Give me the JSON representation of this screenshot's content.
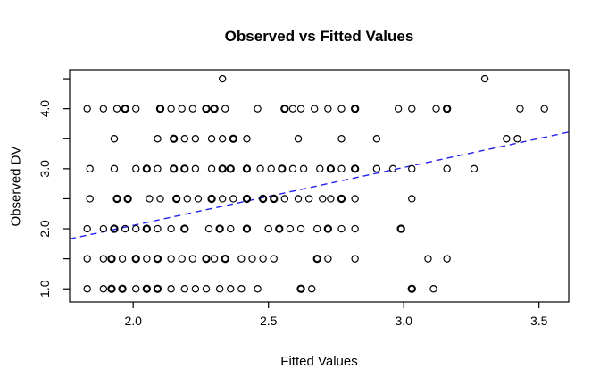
{
  "chart_data": {
    "type": "scatter",
    "title": "Observed vs Fitted Values",
    "xlabel": "Fitted Values",
    "ylabel": "Observed DV",
    "xlim": [
      1.765,
      3.61
    ],
    "ylim": [
      0.78,
      4.65
    ],
    "x_ticks": [
      2.0,
      2.5,
      3.0,
      3.5
    ],
    "x_tick_labels": [
      "2.0",
      "2.5",
      "3.0",
      "3.5"
    ],
    "y_ticks_minor": [
      1.0,
      1.5,
      2.0,
      2.5,
      3.0,
      3.5,
      4.0,
      4.5
    ],
    "y_ticks_labeled": [
      1.0,
      2.0,
      3.0,
      4.0
    ],
    "y_tick_labels": [
      "1.0",
      "2.0",
      "3.0",
      "4.0"
    ],
    "grid": false,
    "legend": "none",
    "background_color": "#FFFFFF",
    "axis_color": "#000000",
    "point_color": "#000000",
    "point_style": "open-circle",
    "fit_line": {
      "x1": 1.765,
      "y1": 1.83,
      "x2": 3.61,
      "y2": 3.61,
      "color": "#2222EE",
      "style": "dashed"
    },
    "points": [
      [
        2.33,
        4.5,
        0
      ],
      [
        3.3,
        4.5,
        0
      ],
      [
        1.83,
        4,
        0
      ],
      [
        1.89,
        4,
        0
      ],
      [
        1.94,
        4,
        0
      ],
      [
        1.97,
        4,
        1
      ],
      [
        2.01,
        4,
        0
      ],
      [
        2.1,
        4,
        1
      ],
      [
        2.14,
        4,
        0
      ],
      [
        2.18,
        4,
        0
      ],
      [
        2.22,
        4,
        0
      ],
      [
        2.27,
        4,
        1
      ],
      [
        2.3,
        4,
        1
      ],
      [
        2.34,
        4,
        0
      ],
      [
        2.46,
        4,
        0
      ],
      [
        2.56,
        4,
        1
      ],
      [
        2.59,
        4,
        0
      ],
      [
        2.62,
        4,
        0
      ],
      [
        2.67,
        4,
        0
      ],
      [
        2.72,
        4,
        0
      ],
      [
        2.77,
        4,
        0
      ],
      [
        2.82,
        4,
        1
      ],
      [
        2.98,
        4,
        0
      ],
      [
        3.03,
        4,
        0
      ],
      [
        3.12,
        4,
        0
      ],
      [
        3.16,
        4,
        1
      ],
      [
        3.43,
        4,
        0
      ],
      [
        3.52,
        4,
        0
      ],
      [
        1.93,
        3.5,
        0
      ],
      [
        2.09,
        3.5,
        0
      ],
      [
        2.15,
        3.5,
        1
      ],
      [
        2.19,
        3.5,
        0
      ],
      [
        2.23,
        3.5,
        0
      ],
      [
        2.29,
        3.5,
        0
      ],
      [
        2.33,
        3.5,
        0
      ],
      [
        2.37,
        3.5,
        1
      ],
      [
        2.42,
        3.5,
        0
      ],
      [
        2.61,
        3.5,
        0
      ],
      [
        2.77,
        3.5,
        0
      ],
      [
        2.9,
        3.5,
        0
      ],
      [
        3.38,
        3.5,
        0
      ],
      [
        3.42,
        3.5,
        0
      ],
      [
        1.84,
        3,
        0
      ],
      [
        1.93,
        3,
        0
      ],
      [
        2.01,
        3,
        0
      ],
      [
        2.05,
        3,
        1
      ],
      [
        2.09,
        3,
        0
      ],
      [
        2.15,
        3,
        1
      ],
      [
        2.19,
        3,
        1
      ],
      [
        2.23,
        3,
        0
      ],
      [
        2.29,
        3,
        0
      ],
      [
        2.33,
        3,
        1
      ],
      [
        2.36,
        3,
        1
      ],
      [
        2.42,
        3,
        1
      ],
      [
        2.47,
        3,
        0
      ],
      [
        2.51,
        3,
        0
      ],
      [
        2.55,
        3,
        1
      ],
      [
        2.59,
        3,
        0
      ],
      [
        2.63,
        3,
        0
      ],
      [
        2.69,
        3,
        0
      ],
      [
        2.73,
        3,
        1
      ],
      [
        2.77,
        3,
        0
      ],
      [
        2.82,
        3,
        1
      ],
      [
        2.9,
        3,
        0
      ],
      [
        2.96,
        3,
        0
      ],
      [
        3.03,
        3,
        0
      ],
      [
        3.16,
        3,
        0
      ],
      [
        3.26,
        3,
        0
      ],
      [
        1.84,
        2.5,
        0
      ],
      [
        1.94,
        2.5,
        1
      ],
      [
        1.98,
        2.5,
        1
      ],
      [
        2.06,
        2.5,
        0
      ],
      [
        2.1,
        2.5,
        0
      ],
      [
        2.16,
        2.5,
        1
      ],
      [
        2.2,
        2.5,
        0
      ],
      [
        2.24,
        2.5,
        0
      ],
      [
        2.29,
        2.5,
        1
      ],
      [
        2.33,
        2.5,
        0
      ],
      [
        2.37,
        2.5,
        0
      ],
      [
        2.42,
        2.5,
        1
      ],
      [
        2.48,
        2.5,
        1
      ],
      [
        2.52,
        2.5,
        1
      ],
      [
        2.56,
        2.5,
        0
      ],
      [
        2.61,
        2.5,
        0
      ],
      [
        2.65,
        2.5,
        0
      ],
      [
        2.7,
        2.5,
        0
      ],
      [
        2.73,
        2.5,
        0
      ],
      [
        2.77,
        2.5,
        1
      ],
      [
        2.82,
        2.5,
        0
      ],
      [
        3.03,
        2.5,
        0
      ],
      [
        1.83,
        2,
        0
      ],
      [
        1.89,
        2,
        0
      ],
      [
        1.93,
        2,
        1
      ],
      [
        1.97,
        2,
        0
      ],
      [
        2.01,
        2,
        0
      ],
      [
        2.05,
        2,
        1
      ],
      [
        2.09,
        2,
        0
      ],
      [
        2.14,
        2,
        0
      ],
      [
        2.19,
        2,
        1
      ],
      [
        2.28,
        2,
        0
      ],
      [
        2.32,
        2,
        1
      ],
      [
        2.36,
        2,
        0
      ],
      [
        2.42,
        2,
        1
      ],
      [
        2.5,
        2,
        0
      ],
      [
        2.54,
        2,
        1
      ],
      [
        2.58,
        2,
        0
      ],
      [
        2.62,
        2,
        0
      ],
      [
        2.68,
        2,
        0
      ],
      [
        2.72,
        2,
        1
      ],
      [
        2.77,
        2,
        0
      ],
      [
        2.82,
        2,
        0
      ],
      [
        2.99,
        2,
        1
      ],
      [
        1.83,
        1.5,
        0
      ],
      [
        1.89,
        1.5,
        0
      ],
      [
        1.92,
        1.5,
        1
      ],
      [
        1.96,
        1.5,
        0
      ],
      [
        2.01,
        1.5,
        1
      ],
      [
        2.05,
        1.5,
        0
      ],
      [
        2.09,
        1.5,
        1
      ],
      [
        2.14,
        1.5,
        0
      ],
      [
        2.18,
        1.5,
        0
      ],
      [
        2.22,
        1.5,
        0
      ],
      [
        2.27,
        1.5,
        1
      ],
      [
        2.3,
        1.5,
        0
      ],
      [
        2.34,
        1.5,
        1
      ],
      [
        2.4,
        1.5,
        0
      ],
      [
        2.44,
        1.5,
        0
      ],
      [
        2.48,
        1.5,
        0
      ],
      [
        2.52,
        1.5,
        0
      ],
      [
        2.68,
        1.5,
        1
      ],
      [
        2.72,
        1.5,
        0
      ],
      [
        2.82,
        1.5,
        0
      ],
      [
        3.09,
        1.5,
        0
      ],
      [
        3.16,
        1.5,
        0
      ],
      [
        1.83,
        1,
        0
      ],
      [
        1.89,
        1,
        0
      ],
      [
        1.92,
        1,
        1
      ],
      [
        1.96,
        1,
        1
      ],
      [
        2.01,
        1,
        0
      ],
      [
        2.05,
        1,
        1
      ],
      [
        2.09,
        1,
        1
      ],
      [
        2.14,
        1,
        0
      ],
      [
        2.19,
        1,
        0
      ],
      [
        2.23,
        1,
        0
      ],
      [
        2.27,
        1,
        0
      ],
      [
        2.32,
        1,
        0
      ],
      [
        2.36,
        1,
        0
      ],
      [
        2.4,
        1,
        0
      ],
      [
        2.46,
        1,
        0
      ],
      [
        2.62,
        1,
        1
      ],
      [
        2.66,
        1,
        0
      ],
      [
        3.03,
        1,
        1
      ],
      [
        3.11,
        1,
        0
      ]
    ]
  }
}
